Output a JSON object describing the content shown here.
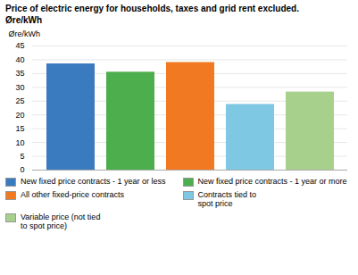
{
  "chart_data": {
    "type": "bar",
    "title": "Price of electric energy for households, taxes and grid rent excluded.",
    "subtitle": "Øre/kWh",
    "ylabel": "Øre/kWh",
    "categories": [
      "New fixed price contracts - 1 year or less",
      "New fixed price contracts - 1 year or more",
      "All other fixed-price contracts",
      "Contracts tied to\nspot price",
      "Variable price (not tied\nto spot price)"
    ],
    "values": [
      38.5,
      35.5,
      39.0,
      23.8,
      28.3
    ],
    "colors": [
      "#3a7abf",
      "#4cae4c",
      "#f07922",
      "#7ec8e3",
      "#a8d08d"
    ],
    "ylim": [
      0,
      45
    ],
    "yticks": [
      0,
      5,
      10,
      15,
      20,
      25,
      30,
      35,
      40,
      45
    ],
    "grid": true,
    "legend": "bottom",
    "tick_labels": "y"
  }
}
